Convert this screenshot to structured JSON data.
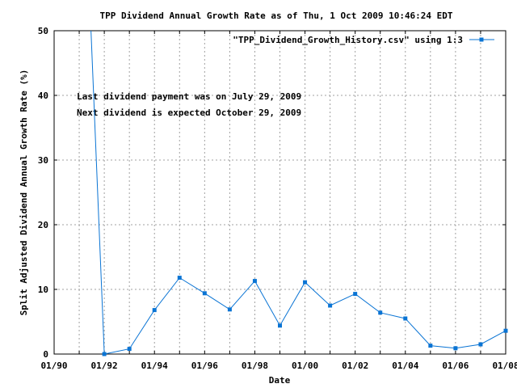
{
  "chart_data": {
    "type": "line",
    "title": "TPP Dividend Annual Growth Rate as of Thu, 1 Oct 2009 10:46:24 EDT",
    "xlabel": "Date",
    "ylabel": "Split Adjusted Dividend Annual Growth Rate (%)",
    "xlim": [
      "1990-01",
      "2008-01"
    ],
    "ylim": [
      0,
      50
    ],
    "x_tick_labels": [
      "01/90",
      "01/92",
      "01/94",
      "01/96",
      "01/98",
      "01/00",
      "01/02",
      "01/04",
      "01/06",
      "01/08"
    ],
    "y_tick_labels": [
      "0",
      "10",
      "20",
      "30",
      "40",
      "50"
    ],
    "grid": true,
    "legend_position": "top-right",
    "annotations": [
      "Last dividend payment was on July 29, 2009",
      "Next dividend is expected October 29, 2009"
    ],
    "series": [
      {
        "name": "\"TPP_Dividend_Growth_History.csv\" using 1:3",
        "color": "#0a74d4",
        "x": [
          "1991-06",
          "1992-01",
          "1993-01",
          "1994-01",
          "1995-01",
          "1996-01",
          "1997-01",
          "1998-01",
          "1999-01",
          "2000-01",
          "2001-01",
          "2002-01",
          "2003-01",
          "2004-01",
          "2005-01",
          "2006-01",
          "2007-01",
          "2008-01"
        ],
        "values": [
          55,
          0,
          0.8,
          6.8,
          11.8,
          9.4,
          6.9,
          11.3,
          4.4,
          11.1,
          7.5,
          9.3,
          6.4,
          5.5,
          1.3,
          0.9,
          1.5,
          3.6
        ]
      }
    ]
  }
}
